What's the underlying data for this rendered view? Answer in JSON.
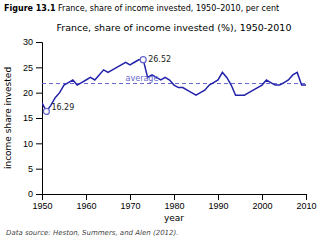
{
  "chart_data": {
    "type": "line",
    "title": "France, share of income invested (%), 1950-2010",
    "subtitle": [
      "Figure 13.1",
      " France, share of income invested, 1950–2010, per cent"
    ],
    "x_label": "year",
    "y_label": "income share invested",
    "x": [
      1950,
      1951,
      1952,
      1953,
      1954,
      1955,
      1956,
      1957,
      1958,
      1959,
      1960,
      1961,
      1962,
      1963,
      1964,
      1965,
      1966,
      1967,
      1968,
      1969,
      1970,
      1971,
      1972,
      1973,
      1974,
      1975,
      1976,
      1977,
      1978,
      1979,
      1980,
      1981,
      1982,
      1983,
      1984,
      1985,
      1986,
      1987,
      1988,
      1989,
      1990,
      1991,
      1992,
      1993,
      1994,
      1995,
      1996,
      1997,
      1998,
      1999,
      2000,
      2001,
      2002,
      2003,
      2004,
      2005,
      2006,
      2007,
      2008,
      2009,
      2010
    ],
    "values": [
      18.0,
      16.29,
      17.5,
      19.0,
      20.0,
      21.5,
      22.0,
      22.5,
      21.5,
      22.0,
      22.5,
      23.0,
      22.5,
      23.5,
      24.5,
      24.0,
      24.5,
      25.0,
      25.5,
      26.0,
      25.5,
      26.0,
      26.5,
      26.52,
      23.0,
      23.5,
      23.0,
      22.5,
      23.0,
      22.5,
      21.5,
      21.0,
      21.0,
      20.5,
      20.0,
      19.5,
      20.0,
      20.5,
      21.5,
      22.0,
      22.5,
      24.0,
      23.0,
      21.5,
      19.5,
      19.5,
      19.5,
      20.0,
      20.5,
      21.0,
      21.5,
      22.5,
      22.0,
      21.5,
      21.5,
      22.0,
      22.5,
      23.5,
      24.0,
      21.5,
      21.5
    ],
    "color": "#2222aa",
    "reference_line": {
      "value": 21.8,
      "label": "average",
      "label_x": 1969,
      "label_y": 22.1,
      "color": "#6666cc",
      "line_style": "dashed"
    },
    "highlights": [
      {
        "x": 1951,
        "value": 16.29,
        "color": "#6666cc"
      },
      {
        "x": 1973,
        "value": 26.52,
        "color": "#6666cc"
      }
    ],
    "annotations": [
      {
        "text": "Data source: Heston, Summers, and Alen (2012)."
      }
    ],
    "xlim": [
      1950,
      2010
    ],
    "ylim": [
      0,
      30
    ],
    "xticks": [
      1950,
      1960,
      1970,
      1980,
      1990,
      2000,
      2010
    ],
    "yticks": [
      0,
      5,
      10,
      15,
      20,
      25,
      30
    ],
    "grid": false
  }
}
